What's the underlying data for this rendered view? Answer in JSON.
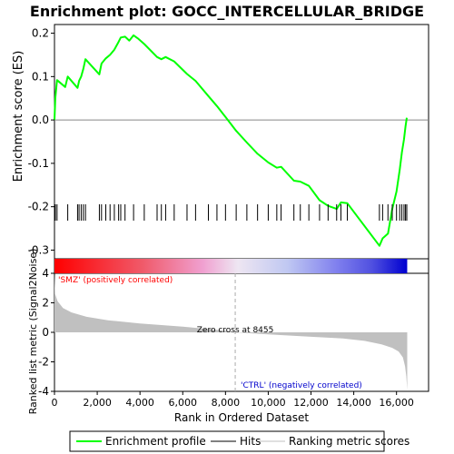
{
  "chart_data": {
    "type": "line",
    "title": "Enrichment plot: GOCC_INTERCELLULAR_BRIDGE",
    "es_panel": {
      "ylabel": "Enrichment score (ES)",
      "ylim": [
        -0.32,
        0.22
      ],
      "yticks": [
        0.2,
        0.1,
        0.0,
        -0.1,
        -0.2,
        -0.3
      ],
      "ytick_labels": [
        "0.2",
        "0.1",
        "0.0",
        "-0.1",
        "-0.2",
        "-0.3"
      ],
      "line_color": "#00ff00",
      "curve": [
        [
          0,
          0.0
        ],
        [
          40,
          0.05
        ],
        [
          120,
          0.092
        ],
        [
          500,
          0.076
        ],
        [
          620,
          0.1
        ],
        [
          1080,
          0.074
        ],
        [
          1150,
          0.09
        ],
        [
          1250,
          0.1
        ],
        [
          1350,
          0.118
        ],
        [
          1450,
          0.14
        ],
        [
          2100,
          0.105
        ],
        [
          2200,
          0.13
        ],
        [
          2400,
          0.142
        ],
        [
          2600,
          0.15
        ],
        [
          2800,
          0.162
        ],
        [
          3000,
          0.18
        ],
        [
          3100,
          0.19
        ],
        [
          3300,
          0.192
        ],
        [
          3500,
          0.183
        ],
        [
          3700,
          0.195
        ],
        [
          3900,
          0.188
        ],
        [
          4200,
          0.175
        ],
        [
          4800,
          0.145
        ],
        [
          5000,
          0.14
        ],
        [
          5200,
          0.145
        ],
        [
          5600,
          0.135
        ],
        [
          6200,
          0.106
        ],
        [
          6600,
          0.09
        ],
        [
          7200,
          0.055
        ],
        [
          7600,
          0.032
        ],
        [
          8000,
          0.007
        ],
        [
          8500,
          -0.025
        ],
        [
          9000,
          -0.052
        ],
        [
          9500,
          -0.078
        ],
        [
          10000,
          -0.098
        ],
        [
          10400,
          -0.11
        ],
        [
          10600,
          -0.108
        ],
        [
          11200,
          -0.14
        ],
        [
          11500,
          -0.142
        ],
        [
          11900,
          -0.152
        ],
        [
          12400,
          -0.185
        ],
        [
          12800,
          -0.198
        ],
        [
          13200,
          -0.205
        ],
        [
          13400,
          -0.19
        ],
        [
          13700,
          -0.192
        ],
        [
          15200,
          -0.29
        ],
        [
          15350,
          -0.273
        ],
        [
          15600,
          -0.262
        ],
        [
          15800,
          -0.205
        ],
        [
          16000,
          -0.165
        ],
        [
          16150,
          -0.115
        ],
        [
          16250,
          -0.075
        ],
        [
          16350,
          -0.045
        ],
        [
          16420,
          -0.015
        ],
        [
          16480,
          0.005
        ]
      ],
      "zero_line": 0.0
    },
    "hits_panel": {
      "hit_color": "#000000",
      "hit_positions": [
        40,
        120,
        620,
        1080,
        1150,
        1250,
        1350,
        1450,
        2100,
        2200,
        2400,
        2600,
        2800,
        3000,
        3100,
        3300,
        3700,
        4200,
        4800,
        5000,
        5200,
        5600,
        6200,
        6600,
        7200,
        7600,
        8000,
        8500,
        9000,
        9500,
        10000,
        10400,
        10600,
        11200,
        11500,
        11900,
        12400,
        12800,
        13200,
        13400,
        13700,
        15200,
        15350,
        15600,
        15800,
        16000,
        16150,
        16250,
        16350,
        16420,
        16480
      ],
      "heatmap_stops": [
        {
          "pos": 0.0,
          "color": "#ff0000"
        },
        {
          "pos": 0.25,
          "color": "#f05a6a"
        },
        {
          "pos": 0.42,
          "color": "#f0a0d0"
        },
        {
          "pos": 0.52,
          "color": "#eee6f2"
        },
        {
          "pos": 0.66,
          "color": "#c0c8f2"
        },
        {
          "pos": 0.8,
          "color": "#8080ee"
        },
        {
          "pos": 0.9,
          "color": "#5050e0"
        },
        {
          "pos": 1.0,
          "color": "#0000d0"
        }
      ]
    },
    "metric_panel": {
      "ylabel": "Ranked list metric (Signal2Noise)",
      "ylim": [
        -4,
        4
      ],
      "yticks": [
        4,
        2,
        0,
        -2,
        -4
      ],
      "ytick_labels": [
        "4",
        "2",
        "0",
        "-2",
        "-4"
      ],
      "fill_color": "#c0c0c0",
      "metric_curve": [
        [
          0,
          4.5
        ],
        [
          30,
          2.6
        ],
        [
          150,
          2.1
        ],
        [
          400,
          1.65
        ],
        [
          800,
          1.35
        ],
        [
          1500,
          1.05
        ],
        [
          2500,
          0.82
        ],
        [
          4000,
          0.6
        ],
        [
          6000,
          0.38
        ],
        [
          8000,
          0.12
        ],
        [
          8455,
          0.0
        ],
        [
          10000,
          -0.14
        ],
        [
          12000,
          -0.3
        ],
        [
          13500,
          -0.42
        ],
        [
          14500,
          -0.58
        ],
        [
          15300,
          -0.82
        ],
        [
          15800,
          -1.05
        ],
        [
          16100,
          -1.3
        ],
        [
          16300,
          -1.7
        ],
        [
          16400,
          -2.3
        ],
        [
          16460,
          -3.0
        ],
        [
          16500,
          -3.9
        ]
      ],
      "zero_cross_position": 8455,
      "zero_cross_label": "Zero cross at 8455",
      "pos_label": "'SMZ' (positively correlated)",
      "neg_label": "'CTRL' (negatively correlated)",
      "pos_label_color": "#ff0000",
      "neg_label_color": "#0000cc"
    },
    "x_axis": {
      "xlabel": "Rank in Ordered Dataset",
      "xlim": [
        0,
        17500
      ],
      "xticks": [
        0,
        2000,
        4000,
        6000,
        8000,
        10000,
        12000,
        14000,
        16000
      ],
      "xtick_labels": [
        "0",
        "2,000",
        "4,000",
        "6,000",
        "8,000",
        "10,000",
        "12,000",
        "14,000",
        "16,000"
      ],
      "n_genes": 16500
    },
    "legend": {
      "placement": "bottom",
      "items": [
        {
          "label": "Enrichment profile",
          "color": "#00ff00"
        },
        {
          "label": "Hits",
          "color": "#000000"
        },
        {
          "label": "Ranking metric scores",
          "color": "#c0c0c0"
        }
      ]
    }
  }
}
